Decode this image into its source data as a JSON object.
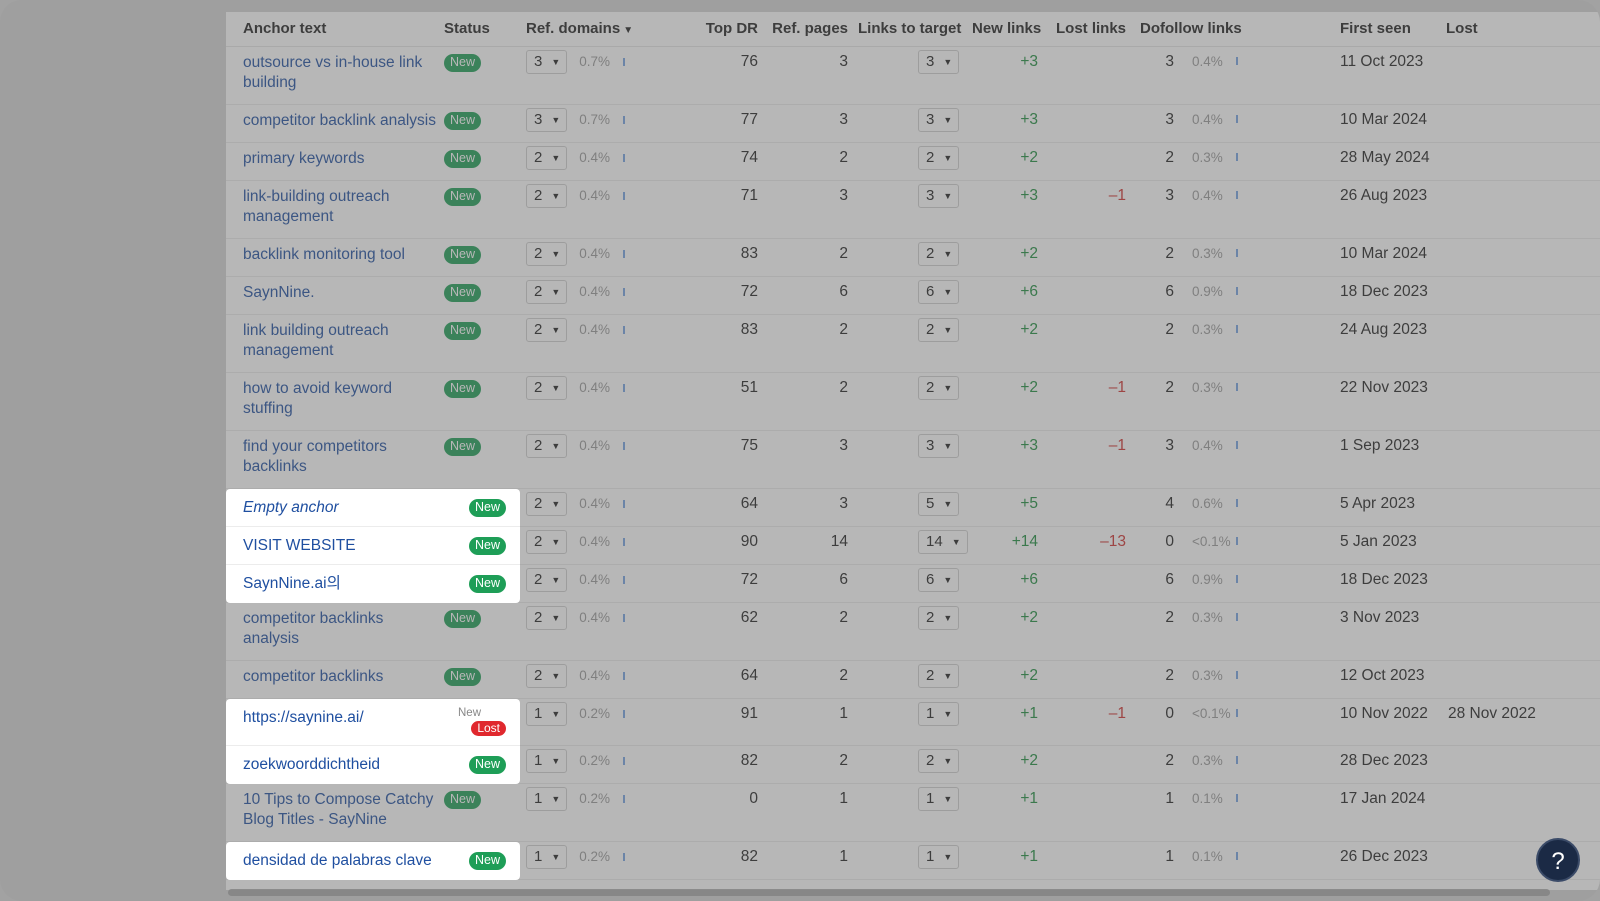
{
  "columns": {
    "anchor": "Anchor text",
    "status": "Status",
    "ref_domains": "Ref. domains",
    "top_dr": "Top DR",
    "ref_pages": "Ref. pages",
    "links_to_target": "Links to target",
    "new_links": "New links",
    "lost_links": "Lost links",
    "dofollow_links": "Dofollow links",
    "first_seen": "First seen",
    "lost": "Lost"
  },
  "badges": {
    "new": "New",
    "lost": "Lost"
  },
  "rows": [
    {
      "anchor": "outsource vs in-house link building",
      "status": "New",
      "rd": "3",
      "rd_pct": "0.7%",
      "dr": "76",
      "pages": "3",
      "ltt": "3",
      "new": "+3",
      "lost": "",
      "dofollow": "3",
      "df_pct": "0.4%",
      "first": "11 Oct 2023",
      "lost_date": ""
    },
    {
      "anchor": "competitor backlink analysis",
      "status": "New",
      "rd": "3",
      "rd_pct": "0.7%",
      "dr": "77",
      "pages": "3",
      "ltt": "3",
      "new": "+3",
      "lost": "",
      "dofollow": "3",
      "df_pct": "0.4%",
      "first": "10 Mar 2024",
      "lost_date": ""
    },
    {
      "anchor": "primary keywords",
      "status": "New",
      "rd": "2",
      "rd_pct": "0.4%",
      "dr": "74",
      "pages": "2",
      "ltt": "2",
      "new": "+2",
      "lost": "",
      "dofollow": "2",
      "df_pct": "0.3%",
      "first": "28 May 2024",
      "lost_date": ""
    },
    {
      "anchor": "link-building outreach management",
      "status": "New",
      "rd": "2",
      "rd_pct": "0.4%",
      "dr": "71",
      "pages": "3",
      "ltt": "3",
      "new": "+3",
      "lost": "–1",
      "dofollow": "3",
      "df_pct": "0.4%",
      "first": "26 Aug 2023",
      "lost_date": ""
    },
    {
      "anchor": "backlink monitoring tool",
      "status": "New",
      "rd": "2",
      "rd_pct": "0.4%",
      "dr": "83",
      "pages": "2",
      "ltt": "2",
      "new": "+2",
      "lost": "",
      "dofollow": "2",
      "df_pct": "0.3%",
      "first": "10 Mar 2024",
      "lost_date": ""
    },
    {
      "anchor": "SaynNine.",
      "status": "New",
      "rd": "2",
      "rd_pct": "0.4%",
      "dr": "72",
      "pages": "6",
      "ltt": "6",
      "new": "+6",
      "lost": "",
      "dofollow": "6",
      "df_pct": "0.9%",
      "first": "18 Dec 2023",
      "lost_date": ""
    },
    {
      "anchor": "link building outreach management",
      "status": "New",
      "rd": "2",
      "rd_pct": "0.4%",
      "dr": "83",
      "pages": "2",
      "ltt": "2",
      "new": "+2",
      "lost": "",
      "dofollow": "2",
      "df_pct": "0.3%",
      "first": "24 Aug 2023",
      "lost_date": ""
    },
    {
      "anchor": "how to avoid keyword stuffing",
      "status": "New",
      "rd": "2",
      "rd_pct": "0.4%",
      "dr": "51",
      "pages": "2",
      "ltt": "2",
      "new": "+2",
      "lost": "–1",
      "dofollow": "2",
      "df_pct": "0.3%",
      "first": "22 Nov 2023",
      "lost_date": ""
    },
    {
      "anchor": "find your competitors backlinks",
      "status": "New",
      "rd": "2",
      "rd_pct": "0.4%",
      "dr": "75",
      "pages": "3",
      "ltt": "3",
      "new": "+3",
      "lost": "–1",
      "dofollow": "3",
      "df_pct": "0.4%",
      "first": "1 Sep 2023",
      "lost_date": ""
    },
    {
      "anchor": "Empty anchor",
      "status": "New",
      "rd": "2",
      "rd_pct": "0.4%",
      "dr": "64",
      "pages": "3",
      "ltt": "5",
      "new": "+5",
      "lost": "",
      "dofollow": "4",
      "df_pct": "0.6%",
      "first": "5 Apr 2023",
      "lost_date": ""
    },
    {
      "anchor": "VISIT WEBSITE",
      "status": "New",
      "rd": "2",
      "rd_pct": "0.4%",
      "dr": "90",
      "pages": "14",
      "ltt": "14",
      "new": "+14",
      "lost": "–13",
      "dofollow": "0",
      "df_pct": "<0.1%",
      "first": "5 Jan 2023",
      "lost_date": ""
    },
    {
      "anchor": "SaynNine.ai의",
      "status": "New",
      "rd": "2",
      "rd_pct": "0.4%",
      "dr": "72",
      "pages": "6",
      "ltt": "6",
      "new": "+6",
      "lost": "",
      "dofollow": "6",
      "df_pct": "0.9%",
      "first": "18 Dec 2023",
      "lost_date": ""
    },
    {
      "anchor": "competitor backlinks analysis",
      "status": "New",
      "rd": "2",
      "rd_pct": "0.4%",
      "dr": "62",
      "pages": "2",
      "ltt": "2",
      "new": "+2",
      "lost": "",
      "dofollow": "2",
      "df_pct": "0.3%",
      "first": "3 Nov 2023",
      "lost_date": ""
    },
    {
      "anchor": "competitor backlinks",
      "status": "New",
      "rd": "2",
      "rd_pct": "0.4%",
      "dr": "64",
      "pages": "2",
      "ltt": "2",
      "new": "+2",
      "lost": "",
      "dofollow": "2",
      "df_pct": "0.3%",
      "first": "12 Oct 2023",
      "lost_date": ""
    },
    {
      "anchor": "https://saynine.ai/",
      "status": "New Lost",
      "rd": "1",
      "rd_pct": "0.2%",
      "dr": "91",
      "pages": "1",
      "ltt": "1",
      "new": "+1",
      "lost": "–1",
      "dofollow": "0",
      "df_pct": "<0.1%",
      "first": "10 Nov 2022",
      "lost_date": "28 Nov 2022"
    },
    {
      "anchor": "zoekwoorddichtheid",
      "status": "New",
      "rd": "1",
      "rd_pct": "0.2%",
      "dr": "82",
      "pages": "2",
      "ltt": "2",
      "new": "+2",
      "lost": "",
      "dofollow": "2",
      "df_pct": "0.3%",
      "first": "28 Dec 2023",
      "lost_date": ""
    },
    {
      "anchor": "10 Tips to Compose Catchy Blog Titles - SayNine",
      "status": "New",
      "rd": "1",
      "rd_pct": "0.2%",
      "dr": "0",
      "pages": "1",
      "ltt": "1",
      "new": "+1",
      "lost": "",
      "dofollow": "1",
      "df_pct": "0.1%",
      "first": "17 Jan 2024",
      "lost_date": ""
    },
    {
      "anchor": "densidad de palabras clave",
      "status": "New",
      "rd": "1",
      "rd_pct": "0.2%",
      "dr": "82",
      "pages": "1",
      "ltt": "1",
      "new": "+1",
      "lost": "",
      "dofollow": "1",
      "df_pct": "0.1%",
      "first": "26 Dec 2023",
      "lost_date": ""
    }
  ],
  "help": {
    "label": "?"
  }
}
